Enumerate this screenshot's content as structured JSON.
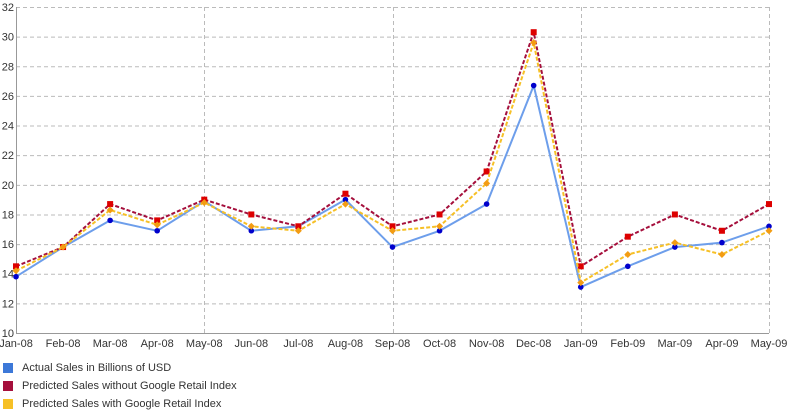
{
  "chart_data": {
    "type": "line",
    "title": "",
    "xlabel": "",
    "ylabel": "",
    "categories": [
      "Jan-08",
      "Feb-08",
      "Mar-08",
      "Apr-08",
      "May-08",
      "Jun-08",
      "Jul-08",
      "Aug-08",
      "Sep-08",
      "Oct-08",
      "Nov-08",
      "Dec-08",
      "Jan-09",
      "Feb-09",
      "Mar-09",
      "Apr-09",
      "May-09"
    ],
    "ylim": [
      10,
      32
    ],
    "yticks": [
      10,
      12,
      14,
      16,
      18,
      20,
      22,
      24,
      26,
      28,
      30,
      32
    ],
    "grid": true,
    "legend_position": "bottom-left",
    "series": [
      {
        "name": "Actual Sales in Billions of USD",
        "color": "#6d9eeb",
        "marker_color": "#0000cc",
        "line_style": "solid",
        "marker": "circle",
        "values": [
          13.8,
          15.8,
          17.6,
          16.9,
          18.9,
          16.9,
          17.2,
          19.0,
          15.8,
          16.9,
          18.7,
          26.7,
          13.1,
          14.5,
          15.8,
          16.1,
          17.2
        ]
      },
      {
        "name": "Predicted Sales without Google Retail Index",
        "color": "#a50f3c",
        "marker_color": "#dd0000",
        "line_style": "dashed",
        "marker": "square",
        "values": [
          14.5,
          15.8,
          18.7,
          17.6,
          19.0,
          18.0,
          17.2,
          19.4,
          17.2,
          18.0,
          20.9,
          30.3,
          14.5,
          16.5,
          18.0,
          16.9,
          18.7
        ]
      },
      {
        "name": "Predicted Sales with Google Retail Index",
        "color": "#f6c026",
        "marker_color": "#f39c12",
        "line_style": "dashed",
        "marker": "diamond",
        "values": [
          14.2,
          15.8,
          18.3,
          17.3,
          18.8,
          17.2,
          16.9,
          18.7,
          16.9,
          17.2,
          20.1,
          29.6,
          13.4,
          15.3,
          16.1,
          15.3,
          16.9
        ]
      }
    ]
  }
}
